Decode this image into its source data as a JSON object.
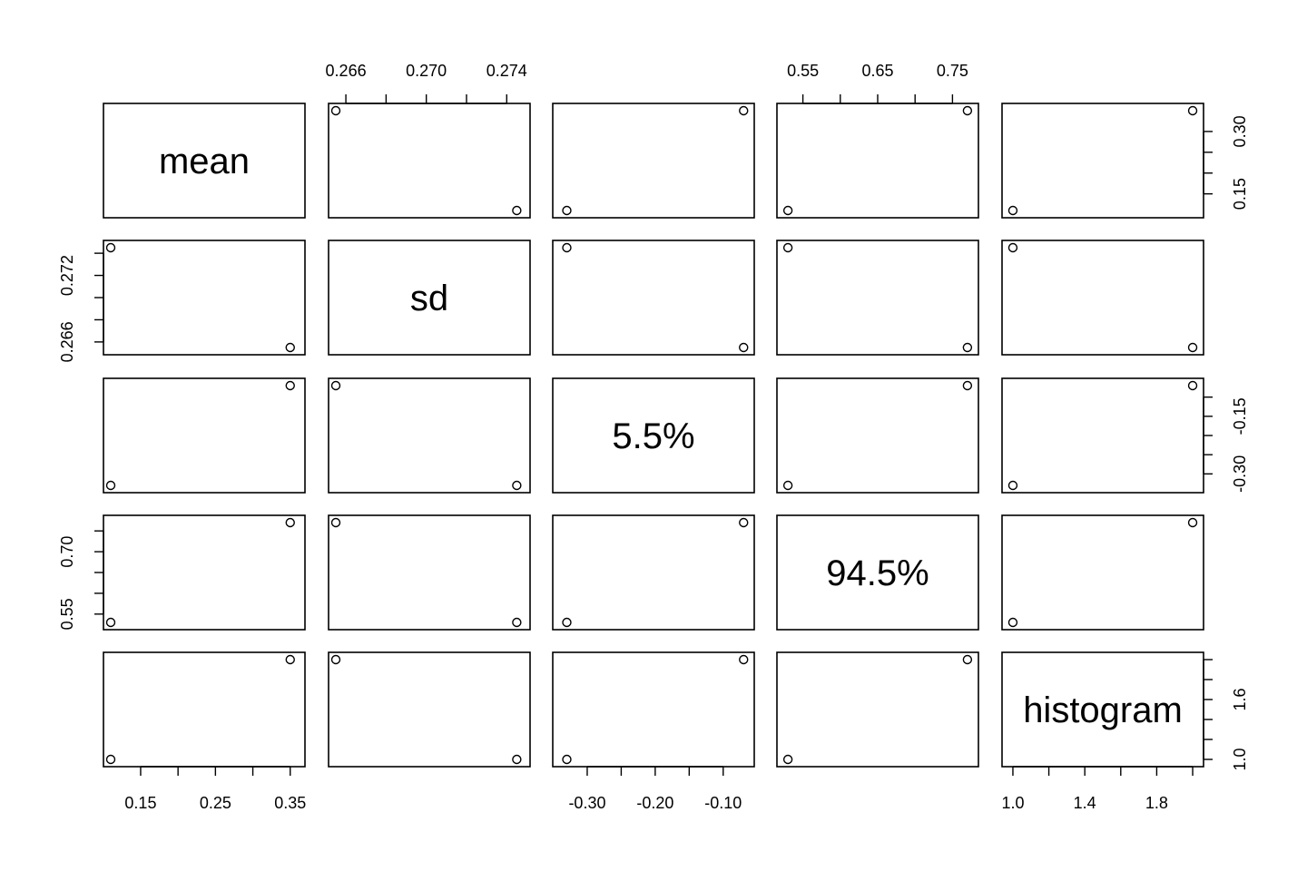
{
  "chart_data": {
    "type": "scatter",
    "subtype": "pairs-matrix",
    "variables": [
      "mean",
      "sd",
      "5.5%",
      "94.5%",
      "histogram"
    ],
    "observations": {
      "mean": [
        0.11,
        0.35
      ],
      "sd": [
        0.2745,
        0.2655
      ],
      "5.5%": [
        -0.33,
        -0.07
      ],
      "94.5%": [
        0.53,
        0.77
      ],
      "histogram": [
        1.0,
        2.0
      ]
    },
    "axes": {
      "mean": {
        "range": [
          0.11,
          0.36
        ],
        "ticks": [
          0.15,
          0.2,
          0.25,
          0.3,
          0.35
        ],
        "labels": [
          "0.15",
          "0.25",
          "0.35"
        ],
        "label_ticks": [
          0.15,
          0.25,
          0.35
        ],
        "side": "bottom"
      },
      "sd": {
        "range": [
          0.2655,
          0.2748
        ],
        "ticks": [
          0.266,
          0.268,
          0.27,
          0.272,
          0.274
        ],
        "labels": [
          "0.266",
          "0.270",
          "0.274"
        ],
        "label_ticks": [
          0.266,
          0.27,
          0.274
        ],
        "side": "top"
      },
      "5.5%": {
        "range": [
          -0.34,
          -0.065
        ],
        "ticks": [
          -0.3,
          -0.25,
          -0.2,
          -0.15,
          -0.1
        ],
        "labels": [
          "-0.30",
          "-0.20",
          "-0.10"
        ],
        "label_ticks": [
          -0.3,
          -0.2,
          -0.1
        ],
        "side": "bottom"
      },
      "94.5%": {
        "range": [
          0.525,
          0.775
        ],
        "ticks": [
          0.55,
          0.6,
          0.65,
          0.7,
          0.75
        ],
        "labels": [
          "0.55",
          "0.65",
          "0.75"
        ],
        "label_ticks": [
          0.55,
          0.65,
          0.75
        ],
        "side": "top"
      },
      "histogram": {
        "range": [
          0.98,
          2.02
        ],
        "ticks": [
          1.0,
          1.2,
          1.4,
          1.6,
          1.8,
          2.0
        ],
        "labels": [
          "1.0",
          "1.4",
          "1.8"
        ],
        "label_ticks": [
          1.0,
          1.4,
          1.8
        ],
        "side": "bottom"
      }
    },
    "y_axes": {
      "mean": {
        "range": [
          0.11,
          0.35
        ],
        "ticks": [
          0.15,
          0.2,
          0.25,
          0.3
        ],
        "labels": [
          "0.15",
          "0.30"
        ],
        "label_ticks": [
          0.15,
          0.3
        ],
        "side": "right"
      },
      "sd": {
        "range": [
          0.2655,
          0.2745
        ],
        "ticks": [
          0.266,
          0.268,
          0.27,
          0.272,
          0.274
        ],
        "labels": [
          "0.266",
          "0.272"
        ],
        "label_ticks": [
          0.266,
          0.272
        ],
        "side": "left"
      },
      "5.5%": {
        "range": [
          -0.33,
          -0.07
        ],
        "ticks": [
          -0.3,
          -0.25,
          -0.2,
          -0.15,
          -0.1
        ],
        "labels": [
          "-0.30",
          "-0.15"
        ],
        "label_ticks": [
          -0.3,
          -0.15
        ],
        "side": "right"
      },
      "94.5%": {
        "range": [
          0.53,
          0.77
        ],
        "ticks": [
          0.55,
          0.6,
          0.65,
          0.7,
          0.75
        ],
        "labels": [
          "0.55",
          "0.70"
        ],
        "label_ticks": [
          0.55,
          0.7
        ],
        "side": "left"
      },
      "histogram": {
        "range": [
          1.0,
          2.0
        ],
        "ticks": [
          1.0,
          1.2,
          1.4,
          1.6,
          1.8,
          2.0
        ],
        "labels": [
          "1.0",
          "1.6"
        ],
        "label_ticks": [
          1.0,
          1.6
        ],
        "side": "right"
      }
    },
    "grid": false,
    "point_style": "open-circle"
  }
}
